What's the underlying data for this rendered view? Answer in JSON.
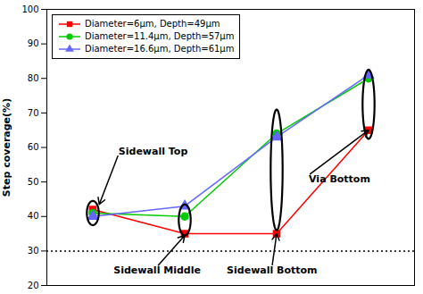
{
  "chart_data": {
    "type": "line",
    "categories": [
      null,
      null,
      null,
      null
    ],
    "series": [
      {
        "name": "Diameter=6μm, Depth=49μm",
        "color": "#FF0000",
        "marker": "square",
        "values": [
          42,
          35,
          35,
          65
        ]
      },
      {
        "name": "Diameter=11.4μm, Depth=57μm",
        "color": "#00CC00",
        "marker": "circle",
        "values": [
          41,
          40,
          64,
          80
        ]
      },
      {
        "name": "Diameter=16.6μm, Depth=61μm",
        "color": "#6666FF",
        "marker": "triangle",
        "values": [
          40,
          43,
          63,
          81
        ]
      }
    ],
    "ylabel": "Step coverage(%)",
    "ylim": [
      20,
      100
    ],
    "yticks": [
      20,
      30,
      40,
      50,
      60,
      70,
      80,
      90,
      100
    ],
    "tick_labels": "y",
    "grid": false,
    "legend": "upper left",
    "reference_line": {
      "y": 30,
      "line_style": "dotted"
    },
    "ellipses": [
      {
        "x": 0,
        "y": 41,
        "width": 0.13,
        "height": 7
      },
      {
        "x": 1,
        "y": 39,
        "width": 0.13,
        "height": 9
      },
      {
        "x": 2,
        "y": 53.5,
        "width": 0.13,
        "height": 35
      },
      {
        "x": 3,
        "y": 72.5,
        "width": 0.13,
        "height": 20
      }
    ],
    "annotations": [
      {
        "text": "Sidewall Top",
        "x": 0.07,
        "y": 43.5,
        "text_x": 0.28,
        "text_y": 58
      },
      {
        "text": "Sidewall Middle",
        "x": 1.0,
        "y": 34.5,
        "text_x": 0.7,
        "text_y": 25.5
      },
      {
        "text": "Sidewall Bottom",
        "x": 2.0,
        "y": 35,
        "text_x": 1.95,
        "text_y": 25.5
      },
      {
        "text": "Via Bottom",
        "x": 3.0,
        "y": 65,
        "text_x": 2.35,
        "text_y": 52
      }
    ]
  }
}
